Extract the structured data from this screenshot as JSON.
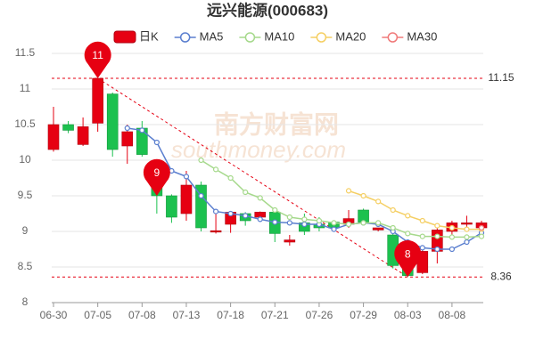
{
  "chart_data": {
    "type": "candlestick",
    "title": "远兴能源(000683)",
    "watermark": {
      "name": "南方财富网",
      "site": "southmoney.com"
    },
    "categories": [
      "06-30",
      null,
      null,
      "07-05",
      null,
      null,
      "07-08",
      null,
      null,
      "07-13",
      null,
      null,
      "07-18",
      null,
      null,
      "07-21",
      null,
      null,
      "07-26",
      null,
      null,
      "07-29",
      null,
      null,
      "08-03",
      null,
      null,
      "08-08",
      null,
      null
    ],
    "candles": {
      "name": "日K",
      "up_color": "#e60012",
      "down_color": "#1cc14f",
      "open": [
        10.15,
        10.5,
        10.22,
        10.52,
        10.93,
        10.2,
        10.45,
        9.7,
        9.5,
        9.25,
        9.65,
        8.99,
        9.1,
        9.25,
        9.2,
        9.27,
        8.85,
        9.12,
        9.1,
        9.13,
        9.1,
        9.3,
        9.02,
        8.95,
        8.5,
        8.42,
        8.72,
        9.0,
        9.1,
        9.05
      ],
      "high": [
        10.75,
        10.55,
        10.6,
        11.15,
        10.95,
        10.5,
        10.55,
        9.8,
        9.52,
        9.85,
        9.7,
        9.25,
        9.28,
        9.27,
        9.28,
        9.3,
        8.95,
        9.25,
        9.2,
        9.15,
        9.3,
        9.32,
        9.05,
        9.0,
        8.55,
        8.75,
        9.05,
        9.15,
        9.22,
        9.15
      ],
      "low": [
        10.12,
        10.38,
        10.2,
        10.4,
        10.05,
        9.95,
        10.05,
        9.25,
        9.12,
        9.15,
        9.0,
        8.97,
        8.98,
        9.08,
        9.2,
        8.85,
        8.8,
        8.95,
        9.0,
        9.0,
        9.05,
        9.1,
        9.0,
        8.48,
        8.36,
        8.4,
        8.55,
        8.95,
        9.05,
        9.0
      ],
      "close": [
        10.5,
        10.42,
        10.47,
        11.15,
        10.15,
        10.4,
        10.08,
        9.5,
        9.2,
        9.65,
        9.05,
        9.01,
        9.27,
        9.15,
        9.27,
        8.97,
        8.88,
        9.0,
        9.05,
        9.05,
        9.18,
        9.13,
        9.05,
        8.52,
        8.38,
        8.72,
        9.02,
        9.12,
        9.12,
        9.12
      ]
    },
    "series": [
      {
        "name": "MA5",
        "color": "#5b7fcf",
        "values": [
          null,
          null,
          null,
          null,
          null,
          10.45,
          10.42,
          10.25,
          9.85,
          9.77,
          9.5,
          9.28,
          9.25,
          9.22,
          9.17,
          9.13,
          9.12,
          9.1,
          9.1,
          9.03,
          9.1,
          9.12,
          9.1,
          9.0,
          8.85,
          8.77,
          8.75,
          8.75,
          8.85,
          8.98
        ]
      },
      {
        "name": "MA10",
        "color": "#a6d98c",
        "values": [
          null,
          null,
          null,
          null,
          null,
          null,
          null,
          null,
          null,
          null,
          10.0,
          9.87,
          9.75,
          9.55,
          9.47,
          9.3,
          9.2,
          9.17,
          9.15,
          9.12,
          9.1,
          9.12,
          9.12,
          9.05,
          8.97,
          8.93,
          8.93,
          8.92,
          8.92,
          8.93
        ]
      },
      {
        "name": "MA20",
        "color": "#f5cf63",
        "values": [
          null,
          null,
          null,
          null,
          null,
          null,
          null,
          null,
          null,
          null,
          null,
          null,
          null,
          null,
          null,
          null,
          null,
          null,
          null,
          null,
          9.57,
          9.5,
          9.42,
          9.3,
          9.22,
          9.15,
          9.08,
          9.05,
          9.03,
          9.03
        ]
      },
      {
        "name": "MA30",
        "color": "#f07a7a",
        "values": [
          null,
          null,
          null,
          null,
          null,
          null,
          null,
          null,
          null,
          null,
          null,
          null,
          null,
          null,
          null,
          null,
          null,
          null,
          null,
          null,
          null,
          null,
          null,
          null,
          null,
          null,
          null,
          null,
          null,
          9.05
        ]
      }
    ],
    "ylim": [
      8,
      11.5
    ],
    "yticks": [
      8,
      8.5,
      9,
      9.5,
      10,
      10.5,
      11,
      11.5
    ],
    "grid": true,
    "ref_lines": [
      11.15,
      8.36
    ],
    "markers": [
      {
        "label": "11",
        "value": 11.15
      },
      {
        "label": "9",
        "value": 9.5
      },
      {
        "label": "8",
        "value": 8.36
      }
    ]
  }
}
